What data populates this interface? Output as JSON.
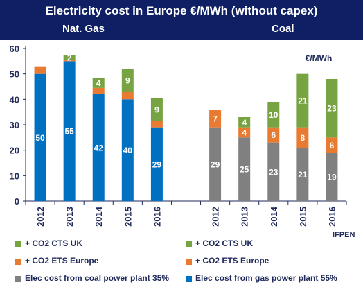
{
  "header": {
    "title": "Electricity  cost in Europe €/MWh (without capex)",
    "left_group": "Nat. Gas",
    "right_group": "Coal",
    "unit": "€/MWh"
  },
  "source": "IFPEN",
  "colors": {
    "header_bg": "#0e1f63",
    "gas_base": "#0070c0",
    "coal_base": "#808080",
    "ets": "#e97a32",
    "cts": "#77a343",
    "text": "#1f2a5a"
  },
  "legend": {
    "left": [
      {
        "label": "+ CO2 CTS UK",
        "color_key": "cts"
      },
      {
        "label": "+ CO2 ETS Europe",
        "color_key": "ets"
      },
      {
        "label": "Elec cost from coal power plant 35%",
        "color_key": "coal_base"
      }
    ],
    "right": [
      {
        "label": "+ CO2 CTS UK",
        "color_key": "cts"
      },
      {
        "label": "+ CO2 ETS Europe",
        "color_key": "ets"
      },
      {
        "label": "Elec cost from gas power plant 55%",
        "color_key": "gas_base"
      }
    ]
  },
  "chart_data": {
    "type": "bar",
    "stacked": true,
    "ylim": [
      0,
      60
    ],
    "yticks": [
      0,
      10,
      20,
      30,
      40,
      50,
      60
    ],
    "grid": false,
    "groups": [
      {
        "name": "Nat. Gas",
        "categories": [
          "2012",
          "2013",
          "2014",
          "2015",
          "2016"
        ],
        "series": [
          {
            "name": "Elec cost from gas power plant 55%",
            "color_key": "gas_base",
            "values": [
              50,
              55,
              42,
              40,
              29
            ],
            "labels": [
              "50",
              "55",
              "42",
              "40",
              "29"
            ]
          },
          {
            "name": "+ CO2 ETS Europe",
            "color_key": "ets",
            "values": [
              3,
              0.5,
              2.5,
              3,
              2.5
            ],
            "labels": [
              "",
              "",
              "",
              "",
              ""
            ]
          },
          {
            "name": "+ CO2 CTS UK",
            "color_key": "cts",
            "values": [
              0,
              2,
              4,
              9,
              9
            ],
            "labels": [
              "",
              "2",
              "4",
              "9",
              "9"
            ]
          }
        ]
      },
      {
        "name": "Coal",
        "categories": [
          "2012",
          "2013",
          "2014",
          "2015",
          "2016"
        ],
        "series": [
          {
            "name": "Elec cost from coal power plant 35%",
            "color_key": "coal_base",
            "values": [
              29,
              25,
              23,
              21,
              19
            ],
            "labels": [
              "29",
              "25",
              "23",
              "21",
              "19"
            ]
          },
          {
            "name": "+ CO2 ETS Europe",
            "color_key": "ets",
            "values": [
              7,
              4,
              6,
              8,
              6
            ],
            "labels": [
              "7",
              "4",
              "6",
              "8",
              "6"
            ]
          },
          {
            "name": "+ CO2 CTS UK",
            "color_key": "cts",
            "values": [
              0,
              4,
              10,
              21,
              23
            ],
            "labels": [
              "",
              "4",
              "10",
              "21",
              "23"
            ]
          }
        ]
      }
    ]
  }
}
